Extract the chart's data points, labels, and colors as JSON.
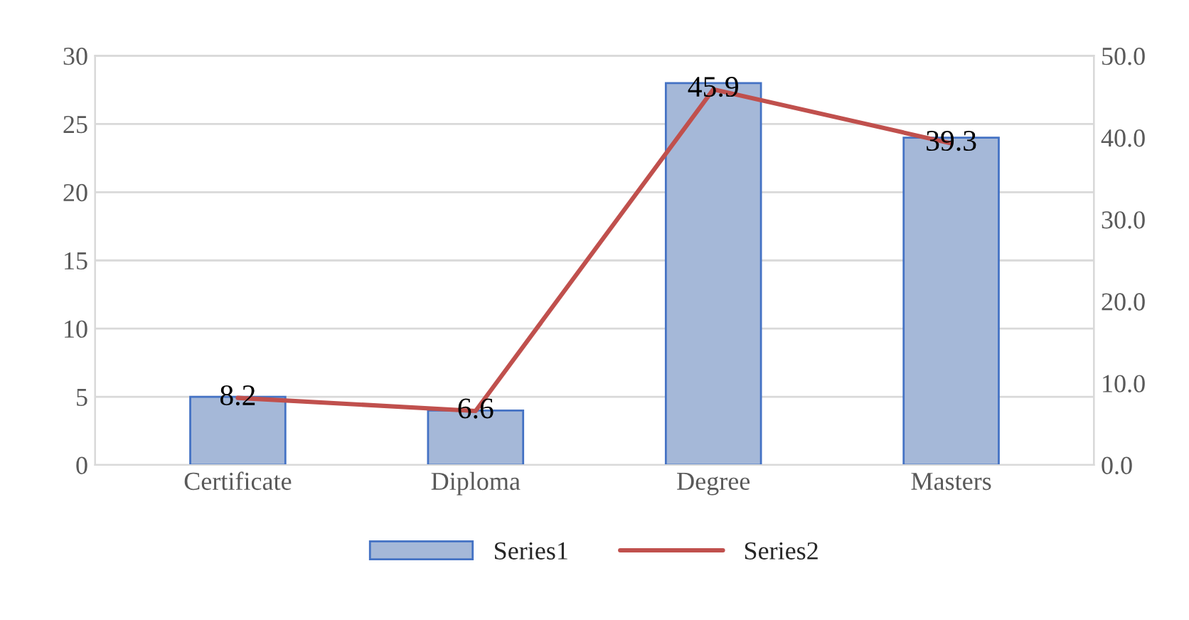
{
  "chart_data": {
    "type": "bar",
    "categories": [
      "Certificate",
      "Diploma",
      "Degree",
      "Masters"
    ],
    "series": [
      {
        "name": "Series1",
        "color": "#a5b8d8",
        "values": [
          5,
          4,
          28,
          24
        ]
      },
      {
        "name": "Series2",
        "type": "line",
        "axis": "y2",
        "color": "#c0504d",
        "values": [
          8.2,
          6.6,
          45.9,
          39.3
        ],
        "value_labels": [
          "8.2",
          "6.6",
          "45.9",
          "39.3"
        ]
      }
    ],
    "ylim": [
      0,
      30
    ],
    "yticks": [
      0,
      5,
      10,
      15,
      20,
      25,
      30
    ],
    "y2lim": [
      0,
      50
    ],
    "y2ticks": [
      {
        "value": 0,
        "label": "0.0"
      },
      {
        "value": 10,
        "label": "10.0"
      },
      {
        "value": 20,
        "label": "20.0"
      },
      {
        "value": 30,
        "label": "30.0"
      },
      {
        "value": 40,
        "label": "40.0"
      },
      {
        "value": 50,
        "label": "50.0"
      }
    ],
    "grid": "y",
    "legend": "bottom",
    "marker": "none",
    "line_style": "solid"
  }
}
